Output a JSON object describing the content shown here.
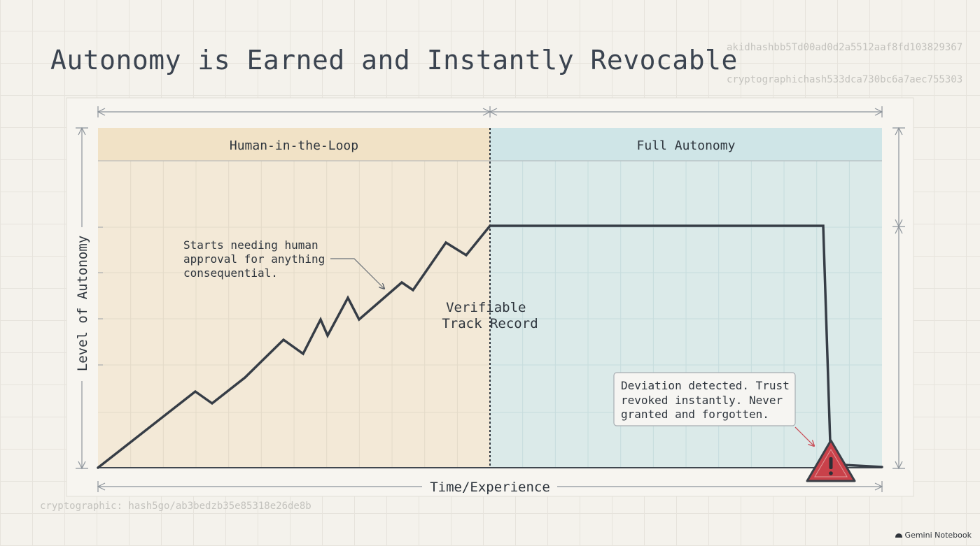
{
  "title": "Autonomy is Earned and Instantly Revocable",
  "hashes": {
    "top_1": "akidhashbb5Td00ad0d2a5512aaf8fd103829367",
    "top_2": "cryptographichash533dca730bc6a7aec755303",
    "bottom": "cryptographic: hash5go/ab3bedzb35e85318e26de8b"
  },
  "zones": {
    "left": "Human-in-the-Loop",
    "right": "Full Autonomy"
  },
  "axes": {
    "y_label": "Level of Autonomy",
    "x_label": "Time/Experience"
  },
  "annotations": {
    "start_lines": [
      "Starts needing human",
      "approval for anything",
      "consequential."
    ],
    "milestone_lines": [
      "Verifiable",
      "Track Record"
    ],
    "deviation_lines": [
      "Deviation detected. Trust",
      "revoked instantly. Never",
      "granted and forgotten."
    ]
  },
  "icons": {
    "warning": "warning-triangle-icon",
    "brand_logo": "gemini-logo-icon"
  },
  "colors": {
    "left_zone": "#f3e9d7",
    "left_zone_header": "#f1e2c6",
    "right_zone": "#dbeae9",
    "right_zone_header": "#cfe5e7",
    "line": "#363d46",
    "warning_fill": "#c9414a",
    "warning_outline": "#3a3f47"
  },
  "footer": {
    "brand": "Gemini Notebook"
  }
}
